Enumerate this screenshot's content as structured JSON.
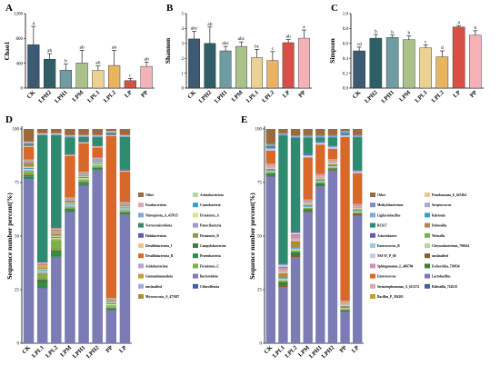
{
  "chart_data": [
    {
      "panel": "A",
      "type": "bar",
      "ylabel": "Chao1",
      "ylim": [
        0,
        1200
      ],
      "yticks": [
        0,
        400,
        800,
        1200
      ],
      "categories": [
        "CK",
        "LPH2",
        "LPH1",
        "LPM",
        "LPL1",
        "LPL2",
        "LP",
        "PP"
      ],
      "values": [
        700,
        465,
        290,
        405,
        285,
        365,
        120,
        350
      ],
      "errors": [
        295,
        90,
        95,
        205,
        70,
        240,
        35,
        70
      ],
      "letters": [
        "a",
        "ab",
        "b",
        "ab",
        "ab",
        "ab",
        "c",
        "ab"
      ]
    },
    {
      "panel": "B",
      "type": "bar",
      "ylabel": "Shannon",
      "ylim": [
        0,
        5
      ],
      "yticks": [
        0,
        1,
        2,
        3,
        4,
        5
      ],
      "categories": [
        "CK",
        "LPH2",
        "LPH1",
        "LPM",
        "LPL1",
        "LPL2",
        "LP",
        "PP"
      ],
      "values": [
        3.3,
        3.0,
        2.5,
        2.8,
        2.05,
        1.85,
        3.05,
        3.35
      ],
      "errors": [
        0.5,
        1.1,
        0.3,
        0.3,
        0.55,
        0.6,
        0.2,
        0.55
      ],
      "letters": [
        "abc",
        "ab",
        "abc",
        "abc",
        "bc",
        "c",
        "ab",
        "a"
      ]
    },
    {
      "panel": "C",
      "type": "bar",
      "ylabel": "Simpson",
      "ylim": [
        0,
        1
      ],
      "yticks": [
        0,
        0.2,
        0.4,
        0.6,
        0.8,
        1.0
      ],
      "categories": [
        "CK",
        "LPH2",
        "LPH1",
        "LPM",
        "LPL1",
        "LPL2",
        "LP",
        "PP"
      ],
      "values": [
        0.5,
        0.67,
        0.68,
        0.65,
        0.54,
        0.42,
        0.82,
        0.71
      ],
      "errors": [
        0.05,
        0.05,
        0.03,
        0.05,
        0.04,
        0.08,
        0.02,
        0.06
      ],
      "letters": [
        "cd",
        "b",
        "b",
        "b",
        "c",
        "d",
        "a",
        "b"
      ]
    },
    {
      "panel": "D",
      "type": "bar",
      "stacked": true,
      "ylabel": "Sequence number percent(%)",
      "ylim": [
        0,
        100
      ],
      "yticks": [
        0,
        25,
        50,
        75,
        100
      ],
      "categories": [
        "CK",
        "LPL1",
        "LPL2",
        "LPM",
        "LPH1",
        "LPH2",
        "PP",
        "LP"
      ],
      "series": [
        {
          "name": "Bacteroidota",
          "values": [
            78,
            26,
            41,
            63,
            77,
            84,
            16,
            63
          ]
        },
        {
          "name": "Chloroflexota",
          "values": [
            0.3,
            0.3,
            0.3,
            0.3,
            0.3,
            0.3,
            0.3,
            0.3
          ]
        },
        {
          "name": "Proteobacteria",
          "values": [
            1,
            2,
            2,
            1,
            1,
            0.5,
            0.5,
            0.5
          ]
        },
        {
          "name": "Campylobacterota",
          "values": [
            0.5,
            2,
            1,
            0.5,
            0.5,
            0.5,
            0.5,
            0.5
          ]
        },
        {
          "name": "Firmicutes_D",
          "values": [
            1,
            1,
            1,
            0.5,
            0.5,
            0.5,
            0.5,
            0.5
          ]
        },
        {
          "name": "Firmicutes_C",
          "values": [
            1,
            2,
            4,
            0.5,
            0.5,
            0.5,
            0.5,
            0.5
          ]
        },
        {
          "name": "Patescibacteria",
          "values": [
            0.5,
            0.5,
            0.5,
            0.5,
            0.5,
            0.5,
            0.5,
            0.5
          ]
        },
        {
          "name": "Firmicutes_A",
          "values": [
            0.5,
            0.5,
            0.5,
            0.5,
            0.5,
            0.5,
            0.5,
            0.5
          ]
        },
        {
          "name": "Cyanobacteria",
          "values": [
            0.5,
            0.5,
            0.5,
            0.5,
            0.5,
            0.5,
            0.5,
            0.5
          ]
        },
        {
          "name": "Actinobacteriota",
          "values": [
            0.5,
            0.5,
            0.5,
            0.5,
            0.5,
            0.5,
            0.5,
            0.5
          ]
        },
        {
          "name": "Myxococcota_A_473307",
          "values": [
            2,
            0.5,
            1,
            1,
            0.5,
            0.5,
            0.5,
            0.5
          ]
        },
        {
          "name": "unclassified",
          "values": [
            0.5,
            0.5,
            0.5,
            0.5,
            0.5,
            0.5,
            0.5,
            0.5
          ]
        },
        {
          "name": "Gemmatimonadota",
          "values": [
            0.5,
            0.5,
            0.5,
            0.5,
            0.5,
            0.5,
            0.5,
            0.5
          ]
        },
        {
          "name": "Acidobacteriota",
          "values": [
            0.5,
            0.5,
            0.5,
            0.5,
            0.5,
            0.5,
            0.5,
            0.5
          ]
        },
        {
          "name": "Desulfobacterota_B",
          "values": [
            6,
            0.5,
            0.5,
            20,
            14,
            5,
            80,
            15
          ]
        },
        {
          "name": "Desulfobacterota_I",
          "values": [
            0.5,
            0.5,
            0.5,
            0.5,
            0.5,
            0.5,
            0.5,
            0.5
          ]
        },
        {
          "name": "Halobacteriota",
          "values": [
            0.5,
            0.5,
            0.5,
            0.5,
            0.5,
            0.5,
            0.5,
            0.5
          ]
        },
        {
          "name": "Verrucomicrobiota",
          "values": [
            0.5,
            60,
            44,
            8,
            2,
            4,
            0.5,
            16
          ]
        },
        {
          "name": "Nitrospirota_A_437815",
          "values": [
            0.5,
            0.5,
            0.5,
            0.5,
            0.5,
            0.5,
            0.5,
            0.5
          ]
        },
        {
          "name": "Fusobacteriota",
          "values": [
            0.5,
            0.5,
            0.5,
            0.5,
            0.5,
            0.5,
            0.5,
            0.5
          ]
        },
        {
          "name": "Other",
          "values": [
            6,
            2,
            2,
            3,
            3,
            3,
            1,
            3
          ]
        }
      ]
    },
    {
      "panel": "E",
      "type": "bar",
      "stacked": true,
      "ylabel": "Sequence number percent(%)",
      "ylim": [
        0,
        100
      ],
      "yticks": [
        0,
        25,
        50,
        75,
        100
      ],
      "categories": [
        "CK",
        "LPL1",
        "LPL2",
        "LPM",
        "LPH1",
        "LPH2",
        "PP",
        "LP"
      ],
      "series": [
        {
          "name": "Lactobacillus",
          "values": [
            77,
            26,
            40,
            62,
            75,
            83,
            15,
            62
          ]
        },
        {
          "name": "Klebsiella_724518",
          "values": [
            0.3,
            0.3,
            0.3,
            0.3,
            0.3,
            0.3,
            0.3,
            0.3
          ]
        },
        {
          "name": "unclassified",
          "values": [
            0.5,
            0.5,
            0.5,
            0.5,
            0.5,
            0.5,
            0.5,
            0.5
          ]
        },
        {
          "name": "Escherichia_710834",
          "values": [
            1,
            2,
            2,
            1,
            1,
            0.5,
            0.5,
            0.5
          ]
        },
        {
          "name": "Weissella",
          "values": [
            0.5,
            0.5,
            0.5,
            0.5,
            0.5,
            0.5,
            0.5,
            0.5
          ]
        },
        {
          "name": "Chryseobacterium_796614",
          "values": [
            0.5,
            1,
            1,
            0.5,
            0.5,
            0.5,
            0.5,
            0.5
          ]
        },
        {
          "name": "Ralstonia",
          "values": [
            0.5,
            0.5,
            0.5,
            0.5,
            0.5,
            0.5,
            0.5,
            0.5
          ]
        },
        {
          "name": "Dubosiella",
          "values": [
            0.5,
            2,
            3,
            0.5,
            0.5,
            0.5,
            0.5,
            0.5
          ]
        },
        {
          "name": "Pseudomonas_E_647464",
          "values": [
            0.5,
            0.5,
            0.5,
            0.5,
            0.5,
            0.5,
            0.5,
            0.5
          ]
        },
        {
          "name": "Streptococcus",
          "values": [
            0.5,
            0.5,
            0.5,
            0.5,
            0.5,
            0.5,
            0.5,
            0.5
          ]
        },
        {
          "name": "Stenotrophomonas_A_615274",
          "values": [
            0.5,
            0.5,
            0.5,
            0.5,
            0.5,
            0.5,
            0.5,
            0.5
          ]
        },
        {
          "name": "Bacillus_P_294101",
          "values": [
            0.5,
            0.5,
            0.5,
            0.5,
            0.5,
            0.5,
            0.5,
            0.5
          ]
        },
        {
          "name": "Sphingomonas_L_486704",
          "values": [
            0.5,
            0.5,
            0.5,
            0.5,
            0.5,
            0.5,
            0.5,
            0.5
          ]
        },
        {
          "name": "Enterococcus",
          "values": [
            6,
            0.5,
            0.5,
            20,
            14,
            5,
            80,
            15
          ]
        },
        {
          "name": "NSJ-67_P_69",
          "values": [
            0.5,
            0.5,
            0.5,
            0.5,
            0.5,
            0.5,
            0.5,
            0.5
          ]
        },
        {
          "name": "Enterococcus_B",
          "values": [
            0.5,
            0.5,
            0.5,
            0.5,
            0.5,
            0.5,
            0.5,
            0.5
          ]
        },
        {
          "name": "Acinetobacter",
          "values": [
            0.5,
            0.5,
            0.5,
            0.5,
            0.5,
            0.5,
            0.5,
            0.5
          ]
        },
        {
          "name": "RC617",
          "values": [
            0.5,
            60,
            44,
            8,
            2,
            4,
            0.5,
            16
          ]
        },
        {
          "name": "Ligilactobacillus",
          "values": [
            0.5,
            0.5,
            0.5,
            0.5,
            0.5,
            0.5,
            0.5,
            0.5
          ]
        },
        {
          "name": "Methylobacterium",
          "values": [
            0.5,
            0.5,
            0.5,
            0.5,
            0.5,
            0.5,
            0.5,
            0.5
          ]
        },
        {
          "name": "Other",
          "values": [
            7,
            2,
            3,
            3,
            3,
            3,
            1,
            3
          ]
        }
      ]
    }
  ],
  "colors": {
    "abc_bars": [
      "#3d5a73",
      "#2f5e66",
      "#6f9ca0",
      "#aac28a",
      "#ead194",
      "#e8b45f",
      "#d94f45",
      "#f4b2b8"
    ],
    "D": [
      "#7b7bb6",
      "#3c61a8",
      "#2f8b45",
      "#3e7f3a",
      "#8a9a4f",
      "#7cb342",
      "#a19bd1",
      "#dbe38a",
      "#2f9fd6",
      "#b3d6a6",
      "#b28a3b",
      "#a8a8d8",
      "#c49d3a",
      "#b2a6d8",
      "#d8672a",
      "#f0c48e",
      "#5a60a8",
      "#2f8b70",
      "#85a7d6",
      "#d9a9b3",
      "#9a6b3c"
    ],
    "E": [
      "#7b7bb6",
      "#3c61a8",
      "#8a5a2b",
      "#3e7f3a",
      "#7cb342",
      "#b3d6a6",
      "#2f9fd6",
      "#b28a3b",
      "#f0c48e",
      "#a8a8d8",
      "#d9a9b3",
      "#c49d3a",
      "#d08fc4",
      "#d8672a",
      "#c8c9e6",
      "#9bcbe6",
      "#5a60a8",
      "#2f8b70",
      "#85a7d6",
      "#7e8fc4",
      "#9a6b3c"
    ],
    "legendD": [
      "Other",
      "Fusobacteriota",
      "Nitrospirota_A_437815",
      "Verrucomicrobiota",
      "Halobacteriota",
      "Desulfobacterota_I",
      "Desulfobacterota_B",
      "Acidobacteriota",
      "Gemmatimonadota",
      "unclassified",
      "Myxococcota_A_473307",
      "Actinobacteriota",
      "Cyanobacteria",
      "Firmicutes_A",
      "Patescibacteria",
      "Firmicutes_D",
      "Campylobacterota",
      "Proteobacteria",
      "Firmicutes_C",
      "Bacteroidota",
      "Chloroflexota"
    ],
    "legendE": [
      "Other",
      "Methylobacterium",
      "Ligilactobacillus",
      "RC617",
      "Acinetobacter",
      "Enterococcus_B",
      "NSJ-67_P_69",
      "Sphingomonas_L_486704",
      "Enterococcus",
      "Stenotrophomonas_A_615274",
      "Bacillus_P_294101",
      "Pseudomonas_E_647464",
      "Streptococcus",
      "Ralstonia",
      "Dubosiella",
      "Weissella",
      "Chryseobacterium_796614",
      "unclassified",
      "Escherichia_710834",
      "Lactobacillus",
      "Klebsiella_724518"
    ]
  }
}
